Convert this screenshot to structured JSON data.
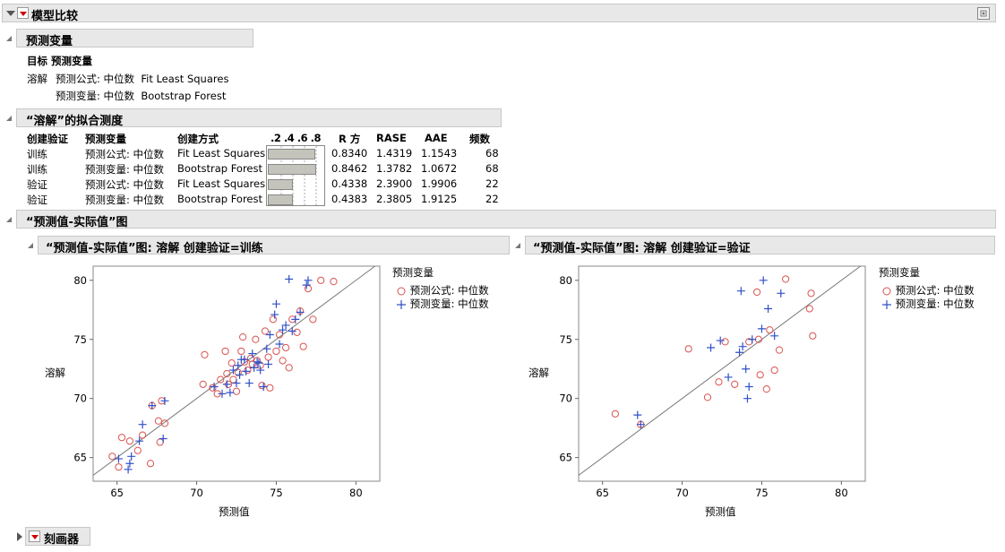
{
  "report": {
    "title": "模型比较",
    "predictors_section": {
      "title": "预测变量",
      "target_header": "目标 预测变量",
      "target": "溶解",
      "predictors": [
        "预测公式: 中位数  Fit Least Squares",
        "预测变量: 中位数  Bootstrap Forest"
      ]
    },
    "fit_section": {
      "title": "“溶解”的拟合测度",
      "columns": [
        "创建验证",
        "预测变量",
        "创建方式",
        ".2 .4 .6 .8",
        "R 方",
        "RASE",
        "AAE",
        "频数"
      ],
      "rows": [
        {
          "set": "训练",
          "predictor": "预测公式: 中位数",
          "method": "Fit Least Squares",
          "r2": "0.8340",
          "r2_value": 0.834,
          "rase": "1.4319",
          "aae": "1.1543",
          "freq": "68"
        },
        {
          "set": "训练",
          "predictor": "预测变量: 中位数",
          "method": "Bootstrap Forest",
          "r2": "0.8462",
          "r2_value": 0.8462,
          "rase": "1.3782",
          "aae": "1.0672",
          "freq": "68"
        },
        {
          "set": "验证",
          "predictor": "预测公式: 中位数",
          "method": "Fit Least Squares",
          "r2": "0.4338",
          "r2_value": 0.4338,
          "rase": "2.3900",
          "aae": "1.9906",
          "freq": "22"
        },
        {
          "set": "验证",
          "predictor": "预测变量: 中位数",
          "method": "Bootstrap Forest",
          "r2": "0.4383",
          "r2_value": 0.4383,
          "rase": "2.3805",
          "aae": "1.9125",
          "freq": "22"
        }
      ]
    },
    "avp_section": {
      "title": "“预测值-实际值”图"
    },
    "profiler": {
      "title": "刻画器"
    }
  },
  "colors": {
    "formula": "#d9534f",
    "forest": "#3050c8",
    "header_bg": "#e8e8e8"
  },
  "icons": [
    "disclosure-triangle-icon",
    "red-triangle-menu-icon",
    "pin-icon"
  ],
  "chart_data": [
    {
      "type": "scatter",
      "title": "“预测值-实际值”图: 溶解 创建验证=训练",
      "xlabel": "预测值",
      "ylabel": "溶解",
      "xlim": [
        63.5,
        81.5
      ],
      "ylim": [
        63,
        81.2
      ],
      "xticks": [
        65,
        70,
        75,
        80
      ],
      "yticks": [
        65,
        70,
        75,
        80
      ],
      "legend": {
        "title": "预测变量",
        "entries": [
          "预测公式: 中位数",
          "预测变量: 中位数"
        ],
        "position": "right"
      },
      "reference_line": "y=x",
      "series": [
        {
          "name": "预测公式: 中位数",
          "marker": "circle",
          "x": [
            64.7,
            65.1,
            65.3,
            65.8,
            66.3,
            66.6,
            67.1,
            67.2,
            67.6,
            67.7,
            67.8,
            68.0,
            70.4,
            70.5,
            71.0,
            71.3,
            71.5,
            71.8,
            71.9,
            72.0,
            72.2,
            72.3,
            72.5,
            72.6,
            72.8,
            72.9,
            73.0,
            73.2,
            73.4,
            73.5,
            73.7,
            73.8,
            74.0,
            74.1,
            74.3,
            74.5,
            74.6,
            74.8,
            75.0,
            75.2,
            75.4,
            75.6,
            75.8,
            76.0,
            76.3,
            76.5,
            76.7,
            77.0,
            77.3,
            77.8,
            78.6
          ],
          "y": [
            65.1,
            64.2,
            66.7,
            66.4,
            65.6,
            66.9,
            64.5,
            69.4,
            68.1,
            66.3,
            69.8,
            67.9,
            71.2,
            73.7,
            70.9,
            70.4,
            71.6,
            74.0,
            72.1,
            71.2,
            73.0,
            71.6,
            70.6,
            72.2,
            74.0,
            75.2,
            73.1,
            72.4,
            73.4,
            72.9,
            75.0,
            73.2,
            72.8,
            71.1,
            75.7,
            73.5,
            70.9,
            76.7,
            74.0,
            75.4,
            73.2,
            74.3,
            72.6,
            76.7,
            75.6,
            77.4,
            74.4,
            79.3,
            76.7,
            80.0,
            79.9
          ]
        },
        {
          "name": "预测变量: 中位数",
          "marker": "plus",
          "x": [
            65.1,
            65.7,
            65.8,
            65.9,
            66.4,
            66.6,
            67.2,
            67.9,
            68.0,
            71.1,
            71.6,
            71.9,
            72.1,
            72.3,
            72.5,
            72.6,
            72.7,
            72.8,
            73.0,
            73.1,
            73.3,
            73.5,
            73.6,
            73.8,
            73.9,
            74.0,
            74.2,
            74.4,
            74.5,
            74.6,
            74.9,
            75.0,
            75.2,
            75.4,
            75.6,
            75.8,
            76.0,
            76.2,
            76.5,
            76.9,
            77.0
          ],
          "y": [
            64.9,
            64.0,
            64.5,
            65.1,
            66.4,
            67.8,
            69.4,
            66.6,
            69.8,
            71.0,
            70.4,
            71.2,
            70.5,
            72.4,
            71.3,
            72.8,
            72.0,
            73.3,
            73.3,
            72.3,
            71.3,
            73.8,
            72.6,
            73.1,
            73.0,
            72.4,
            71.0,
            74.2,
            72.9,
            75.4,
            77.1,
            78.0,
            74.6,
            75.8,
            76.2,
            80.1,
            75.7,
            76.7,
            77.3,
            79.6,
            80.0
          ]
        }
      ]
    },
    {
      "type": "scatter",
      "title": "“预测值-实际值”图: 溶解 创建验证=验证",
      "xlabel": "预测值",
      "ylabel": "溶解",
      "xlim": [
        63.5,
        81.5
      ],
      "ylim": [
        63,
        81.2
      ],
      "xticks": [
        65,
        70,
        75,
        80
      ],
      "yticks": [
        65,
        70,
        75,
        80
      ],
      "legend": {
        "title": "预测变量",
        "entries": [
          "预测公式: 中位数",
          "预测变量: 中位数"
        ],
        "position": "right"
      },
      "reference_line": "y=x",
      "series": [
        {
          "name": "预测公式: 中位数",
          "marker": "circle",
          "x": [
            65.8,
            67.4,
            70.4,
            71.6,
            72.3,
            72.7,
            73.3,
            74.2,
            74.7,
            74.8,
            74.9,
            75.3,
            75.5,
            75.8,
            76.1,
            76.5,
            78.0,
            78.1,
            78.2
          ],
          "y": [
            68.7,
            67.8,
            74.2,
            70.1,
            71.4,
            74.8,
            71.2,
            74.8,
            79.0,
            75.0,
            72.0,
            70.8,
            75.8,
            72.4,
            74.1,
            80.1,
            77.6,
            78.9,
            75.3
          ]
        },
        {
          "name": "预测变量: 中位数",
          "marker": "plus",
          "x": [
            67.2,
            67.4,
            71.8,
            72.4,
            72.9,
            73.6,
            73.7,
            73.8,
            74.0,
            74.1,
            74.2,
            74.4,
            75.0,
            75.1,
            75.4,
            75.8,
            76.2
          ],
          "y": [
            68.6,
            67.8,
            74.3,
            74.9,
            71.8,
            73.9,
            79.1,
            74.4,
            72.5,
            70.0,
            71.0,
            75.0,
            75.9,
            80.0,
            77.6,
            75.3,
            78.9
          ]
        }
      ]
    }
  ]
}
